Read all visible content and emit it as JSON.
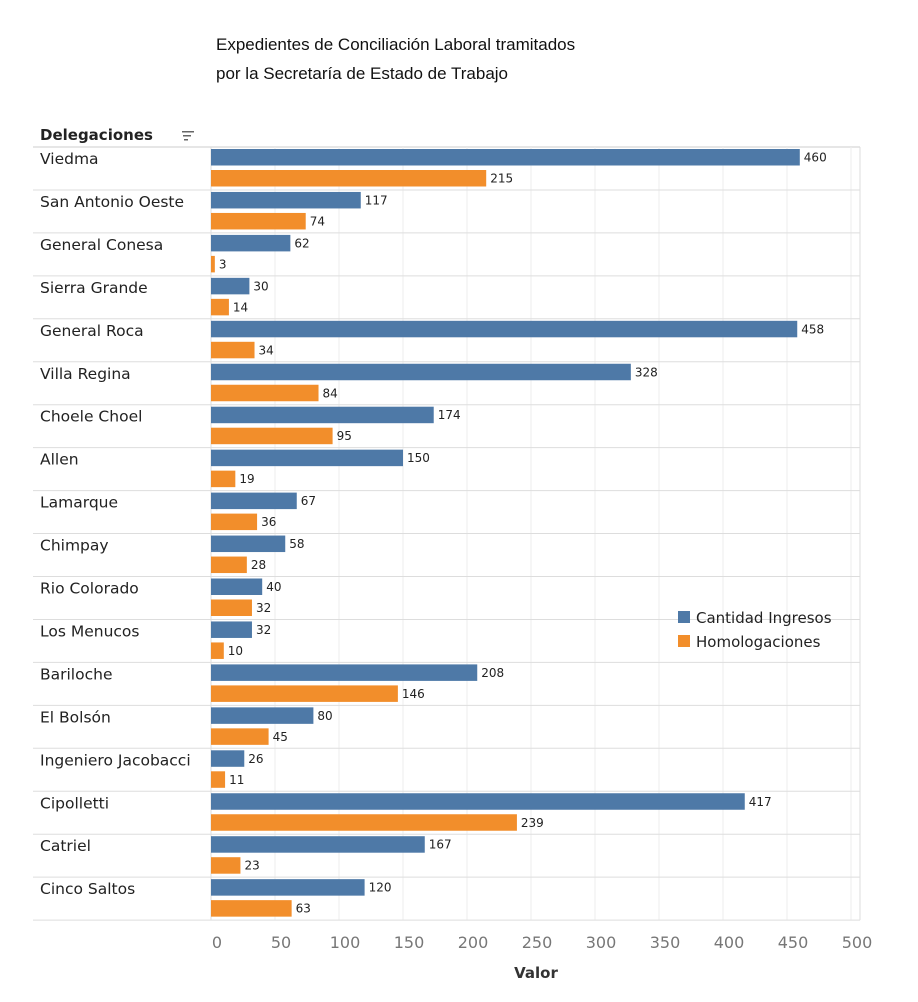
{
  "chart_data": {
    "type": "bar",
    "orientation": "horizontal",
    "title_lines": [
      "Expedientes de Conciliación Laboral tramitados",
      "por la Secretaría de Estado de Trabajo"
    ],
    "row_header": "Delegaciones",
    "xlabel": "Valor",
    "xlim": [
      0,
      500
    ],
    "xticks": [
      0,
      50,
      100,
      150,
      200,
      250,
      300,
      350,
      400,
      450,
      500
    ],
    "grid": true,
    "legend_position": "right-middle",
    "categories": [
      "Viedma",
      "San Antonio Oeste",
      "General Conesa",
      "Sierra Grande",
      "General Roca",
      "Villa Regina",
      "Choele Choel",
      "Allen",
      "Lamarque",
      "Chimpay",
      "Rio Colorado",
      "Los Menucos",
      "Bariloche",
      "El Bolsón",
      "Ingeniero Jacobacci",
      "Cipolletti",
      "Catriel",
      "Cinco Saltos"
    ],
    "series": [
      {
        "name": "Cantidad Ingresos",
        "color": "#4e79a7",
        "values": [
          460,
          117,
          62,
          30,
          458,
          328,
          174,
          150,
          67,
          58,
          40,
          32,
          208,
          80,
          26,
          417,
          167,
          120
        ]
      },
      {
        "name": "Homologaciones",
        "color": "#f28e2b",
        "values": [
          215,
          74,
          3,
          14,
          34,
          84,
          95,
          19,
          36,
          28,
          32,
          10,
          146,
          45,
          11,
          239,
          23,
          63
        ]
      }
    ]
  }
}
